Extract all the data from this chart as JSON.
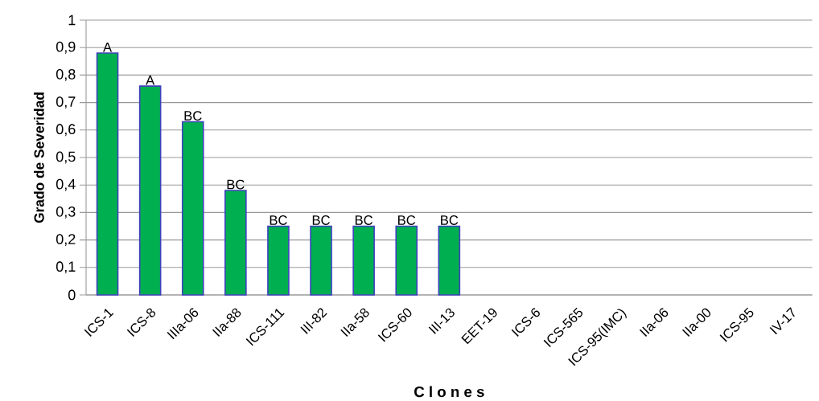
{
  "chart_data": {
    "type": "bar",
    "xlabel": "C l o n e s",
    "ylabel": "Grado de Severidad",
    "categories": [
      "ICS-1",
      "ICS-8",
      "IIIa-06",
      "IIa-88",
      "ICS-111",
      "III-82",
      "IIa-58",
      "ICS-60",
      "III-13",
      "EET-19",
      "ICS-6",
      "ICS-565",
      "ICS-95(IMC)",
      "IIa-06",
      "IIa-00",
      "ICS-95",
      "IV-17"
    ],
    "values": [
      0.88,
      0.76,
      0.63,
      0.38,
      0.25,
      0.25,
      0.25,
      0.25,
      0.25,
      null,
      null,
      null,
      null,
      null,
      null,
      null,
      null
    ],
    "value_labels": [
      "A",
      "A",
      "BC",
      "BC",
      "BC",
      "BC",
      "BC",
      "BC",
      "BC",
      null,
      null,
      null,
      null,
      null,
      null,
      null,
      null
    ],
    "color": "#00b050",
    "ylim": [
      0,
      1
    ],
    "yticks": [
      {
        "value": 0,
        "label": "0"
      },
      {
        "value": 0.1,
        "label": "0,1"
      },
      {
        "value": 0.2,
        "label": "0,2"
      },
      {
        "value": 0.3,
        "label": "0,3"
      },
      {
        "value": 0.4,
        "label": "0,4"
      },
      {
        "value": 0.5,
        "label": "0,5"
      },
      {
        "value": 0.6,
        "label": "0,6"
      },
      {
        "value": 0.7,
        "label": "0,7"
      },
      {
        "value": 0.8,
        "label": "0,8"
      },
      {
        "value": 0.9,
        "label": "0,9"
      },
      {
        "value": 1,
        "label": "1"
      }
    ],
    "grid": "y"
  }
}
